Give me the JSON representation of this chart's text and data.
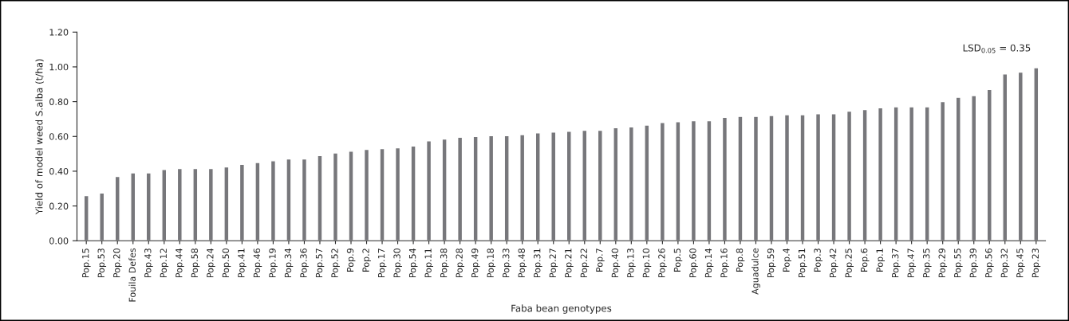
{
  "chart_data": {
    "type": "bar",
    "xlabel": "Faba bean genotypes",
    "ylabel": "Yield of model weed S.alba (t/ha)",
    "categories": [
      "Pop.15",
      "Pop.53",
      "Pop.20",
      "Fouila Defes",
      "Pop.43",
      "Pop.12",
      "Pop.44",
      "Pop.58",
      "Pop.24",
      "Pop.50",
      "Pop.41",
      "Pop.46",
      "Pop.19",
      "Pop.34",
      "Pop.36",
      "Pop.57",
      "Pop.52",
      "Pop.9",
      "Pop.2",
      "Pop.17",
      "Pop.30",
      "Pop.54",
      "Pop.11",
      "Pop.38",
      "Pop.28",
      "Pop.49",
      "Pop.18",
      "Pop.33",
      "Pop.48",
      "Pop.31",
      "Pop.27",
      "Pop.21",
      "Pop.22",
      "Pop.7",
      "Pop.40",
      "Pop.13",
      "Pop.10",
      "Pop.26",
      "Pop.5",
      "Pop.60",
      "Pop.14",
      "Pop.16",
      "Pop.8",
      "Aguadulce",
      "Pop.59",
      "Pop.4",
      "Pop.51",
      "Pop.3",
      "Pop.42",
      "Pop.25",
      "Pop.6",
      "Pop.1",
      "Pop.37",
      "Pop.47",
      "Pop.35",
      "Pop.29",
      "Pop.55",
      "Pop.39",
      "Pop.56",
      "Pop.32",
      "Pop.45",
      "Pop.23"
    ],
    "values": [
      0.26,
      0.275,
      0.37,
      0.39,
      0.39,
      0.41,
      0.415,
      0.415,
      0.415,
      0.425,
      0.44,
      0.45,
      0.46,
      0.47,
      0.47,
      0.49,
      0.505,
      0.515,
      0.525,
      0.53,
      0.535,
      0.545,
      0.575,
      0.585,
      0.595,
      0.6,
      0.605,
      0.605,
      0.61,
      0.62,
      0.625,
      0.63,
      0.635,
      0.635,
      0.65,
      0.655,
      0.665,
      0.68,
      0.685,
      0.69,
      0.69,
      0.71,
      0.715,
      0.715,
      0.72,
      0.725,
      0.725,
      0.73,
      0.73,
      0.745,
      0.755,
      0.765,
      0.77,
      0.77,
      0.77,
      0.8,
      0.825,
      0.835,
      0.87,
      0.96,
      0.97,
      0.995
    ],
    "color": "#77777b",
    "ylim": [
      0,
      1.2
    ],
    "yticks": [
      {
        "value": 0,
        "label": "0.00"
      },
      {
        "value": 0.2,
        "label": "0.20"
      },
      {
        "value": 0.4,
        "label": "0.40"
      },
      {
        "value": 0.6,
        "label": "0.60"
      },
      {
        "value": 0.8,
        "label": "0.80"
      },
      {
        "value": 1.0,
        "label": "1.00"
      },
      {
        "value": 1.2,
        "label": "1.20"
      }
    ],
    "grid": false,
    "annotations": [
      "LSD$_{0.05}$ = 0.35"
    ]
  }
}
